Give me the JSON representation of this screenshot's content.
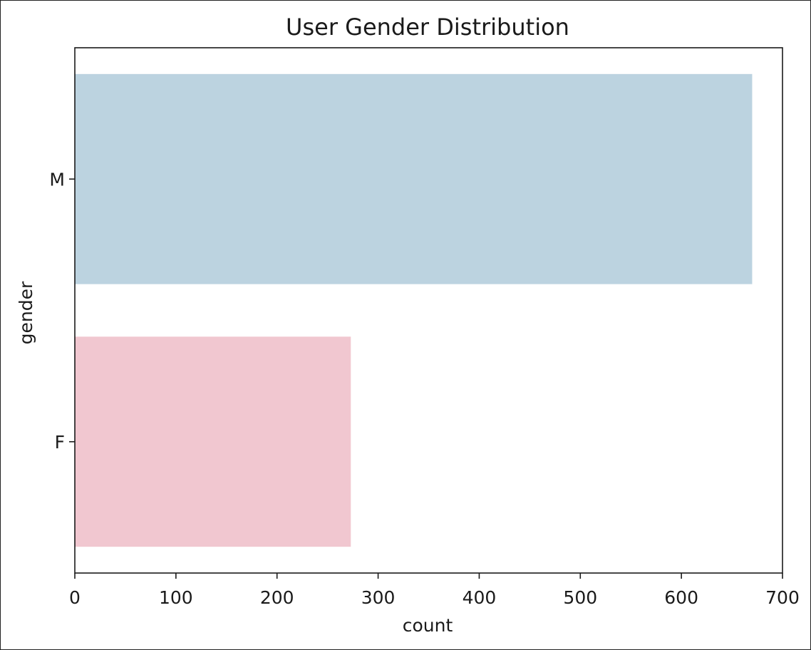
{
  "chart_data": {
    "type": "bar",
    "orientation": "horizontal",
    "title": "User Gender Distribution",
    "xlabel": "count",
    "ylabel": "gender",
    "categories": [
      "M",
      "F"
    ],
    "values": [
      670,
      273
    ],
    "colors": [
      "#bcd3e0",
      "#f1c7d0"
    ],
    "xlim": [
      0,
      700
    ],
    "xticks": [
      0,
      100,
      200,
      300,
      400,
      500,
      600,
      700
    ],
    "grid": false,
    "legend": "none"
  }
}
